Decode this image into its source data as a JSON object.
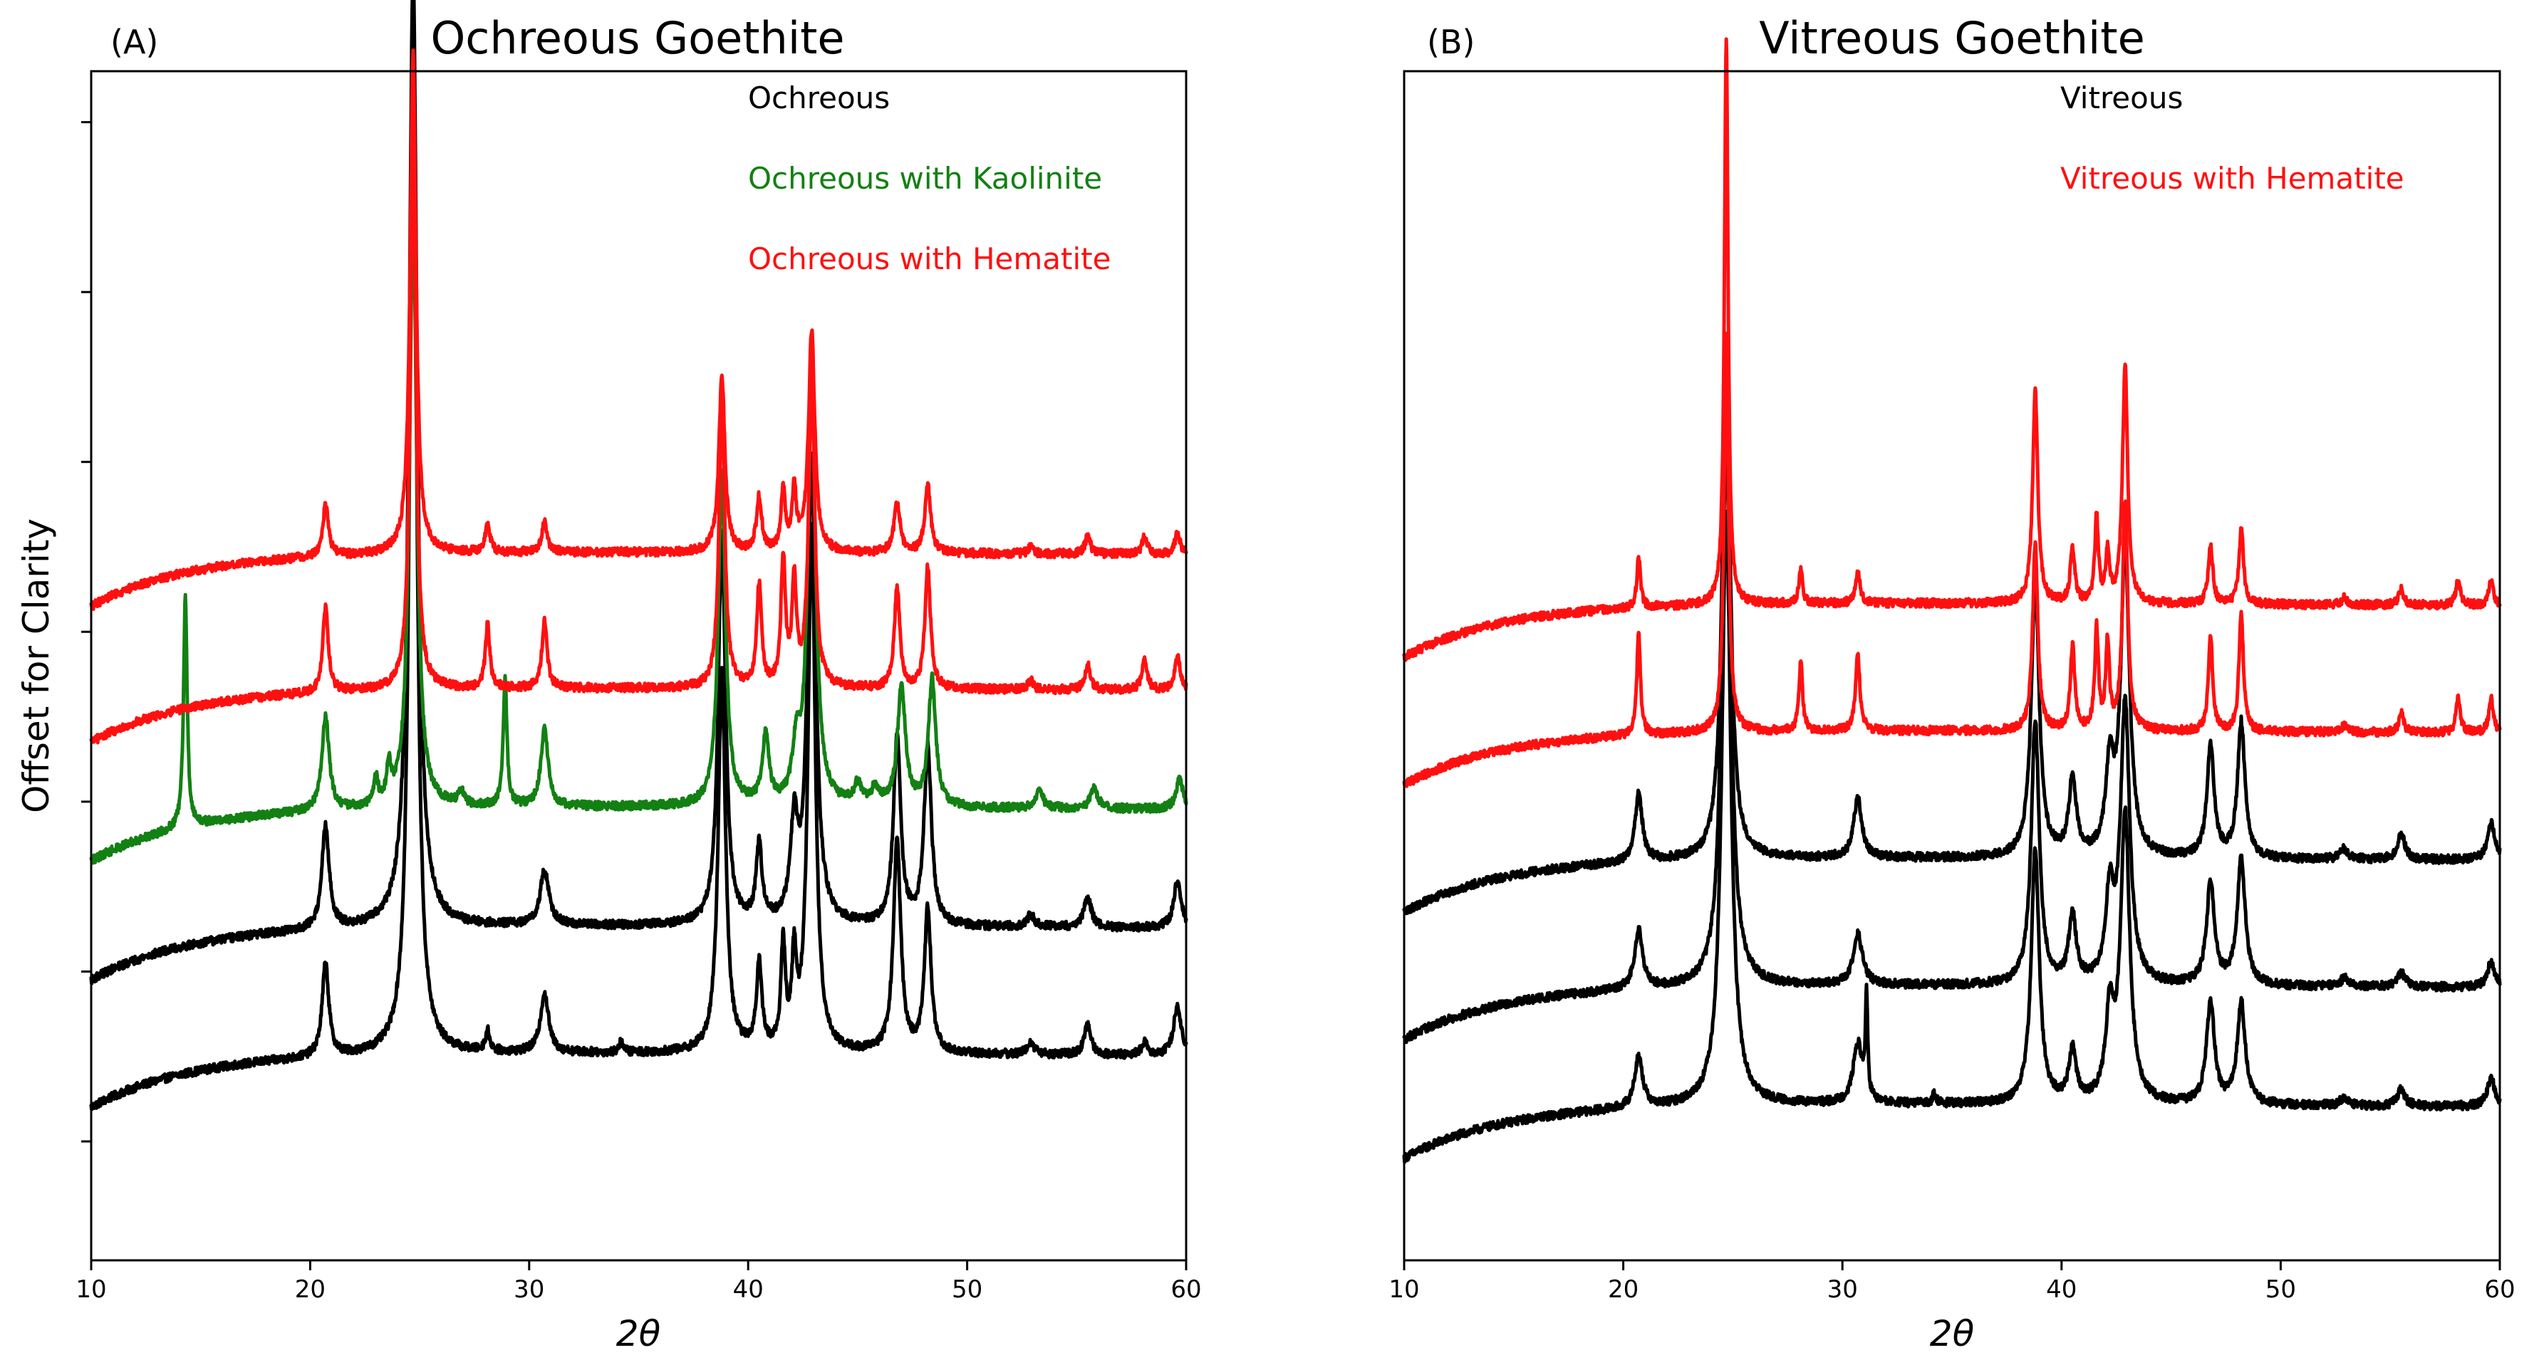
{
  "figure": {
    "ylabel": "Offset for Clarity"
  },
  "chart_data": [
    {
      "type": "line",
      "panel_label": "(A)",
      "title": "Ochreous Goethite",
      "xlabel": "2θ",
      "xlim": [
        10,
        60
      ],
      "xticks": [
        "10",
        "20",
        "30",
        "40",
        "50",
        "60"
      ],
      "ylabel": "Offset for Clarity",
      "ylim": [
        0,
        7
      ],
      "y_ticks_count": 7,
      "legend_placement": "top-right",
      "legend": [
        {
          "label": "Ochreous",
          "color": "#000000"
        },
        {
          "label": "Ochreous with Kaolinite",
          "color": "#138013"
        },
        {
          "label": "Ochreous with Hematite",
          "color": "#ff1010"
        }
      ],
      "series": [
        {
          "name": "Ochreous 1",
          "color": "#000000",
          "baseline": 0.9,
          "peaks": [
            [
              20.7,
              0.55,
              0.18
            ],
            [
              24.7,
              5.9,
              0.2
            ],
            [
              28.1,
              0.12,
              0.12
            ],
            [
              30.7,
              0.35,
              0.22
            ],
            [
              34.2,
              0.06,
              0.12
            ],
            [
              38.8,
              2.25,
              0.2
            ],
            [
              40.5,
              0.5,
              0.15
            ],
            [
              41.6,
              0.6,
              0.12
            ],
            [
              42.1,
              0.5,
              0.12
            ],
            [
              42.9,
              3.1,
              0.2
            ],
            [
              46.8,
              1.25,
              0.2
            ],
            [
              48.2,
              0.85,
              0.18
            ],
            [
              52.9,
              0.07,
              0.2
            ],
            [
              55.5,
              0.18,
              0.18
            ],
            [
              58.1,
              0.08,
              0.15
            ],
            [
              59.6,
              0.3,
              0.2
            ]
          ]
        },
        {
          "name": "Ochreous 2",
          "color": "#000000",
          "baseline": 1.65,
          "peaks": [
            [
              20.7,
              0.6,
              0.2
            ],
            [
              24.7,
              5.6,
              0.22
            ],
            [
              30.7,
              0.32,
              0.24
            ],
            [
              38.8,
              2.3,
              0.2
            ],
            [
              40.5,
              0.45,
              0.16
            ],
            [
              42.1,
              0.55,
              0.2
            ],
            [
              42.9,
              2.75,
              0.22
            ],
            [
              46.8,
              1.1,
              0.2
            ],
            [
              48.2,
              1.05,
              0.2
            ],
            [
              52.9,
              0.07,
              0.2
            ],
            [
              55.5,
              0.18,
              0.2
            ],
            [
              59.6,
              0.28,
              0.2
            ]
          ]
        },
        {
          "name": "Ochreous with Kaolinite",
          "color": "#138013",
          "baseline": 2.35,
          "peaks": [
            [
              14.3,
              1.35,
              0.1
            ],
            [
              20.7,
              0.55,
              0.2
            ],
            [
              23.0,
              0.15,
              0.12
            ],
            [
              23.6,
              0.2,
              0.12
            ],
            [
              24.7,
              3.5,
              0.2
            ],
            [
              26.9,
              0.08,
              0.15
            ],
            [
              28.9,
              0.75,
              0.1
            ],
            [
              30.7,
              0.45,
              0.2
            ],
            [
              38.8,
              1.95,
              0.2
            ],
            [
              40.8,
              0.4,
              0.18
            ],
            [
              42.2,
              0.3,
              0.2
            ],
            [
              42.9,
              2.45,
              0.22
            ],
            [
              45.0,
              0.12,
              0.2
            ],
            [
              45.8,
              0.1,
              0.2
            ],
            [
              47.0,
              0.7,
              0.22
            ],
            [
              48.4,
              0.75,
              0.2
            ],
            [
              53.3,
              0.1,
              0.2
            ],
            [
              55.8,
              0.12,
              0.2
            ],
            [
              59.7,
              0.17,
              0.2
            ]
          ]
        },
        {
          "name": "Ochreous with Hematite 1",
          "color": "#ff1010",
          "baseline": 3.05,
          "peaks": [
            [
              20.7,
              0.5,
              0.15
            ],
            [
              24.7,
              3.4,
              0.15
            ],
            [
              28.1,
              0.38,
              0.12
            ],
            [
              30.7,
              0.4,
              0.14
            ],
            [
              38.8,
              1.75,
              0.15
            ],
            [
              40.5,
              0.6,
              0.13
            ],
            [
              41.6,
              0.75,
              0.12
            ],
            [
              42.1,
              0.6,
              0.12
            ],
            [
              42.9,
              1.85,
              0.16
            ],
            [
              46.8,
              0.6,
              0.15
            ],
            [
              48.2,
              0.72,
              0.15
            ],
            [
              52.9,
              0.05,
              0.15
            ],
            [
              55.5,
              0.15,
              0.15
            ],
            [
              58.1,
              0.18,
              0.14
            ],
            [
              59.6,
              0.2,
              0.15
            ]
          ]
        },
        {
          "name": "Ochreous with Hematite 2",
          "color": "#ff1010",
          "baseline": 3.85,
          "peaks": [
            [
              20.7,
              0.3,
              0.16
            ],
            [
              24.7,
              2.95,
              0.16
            ],
            [
              28.1,
              0.18,
              0.12
            ],
            [
              30.7,
              0.18,
              0.15
            ],
            [
              38.8,
              1.05,
              0.16
            ],
            [
              40.5,
              0.32,
              0.14
            ],
            [
              41.6,
              0.35,
              0.12
            ],
            [
              42.1,
              0.35,
              0.12
            ],
            [
              42.9,
              1.3,
              0.17
            ],
            [
              46.8,
              0.3,
              0.16
            ],
            [
              48.2,
              0.4,
              0.16
            ],
            [
              52.9,
              0.04,
              0.15
            ],
            [
              55.5,
              0.1,
              0.15
            ],
            [
              58.1,
              0.1,
              0.14
            ],
            [
              59.6,
              0.12,
              0.15
            ]
          ]
        }
      ]
    },
    {
      "type": "line",
      "panel_label": "(B)",
      "title": "Vitreous Goethite",
      "xlabel": "2θ",
      "xlim": [
        10,
        60
      ],
      "xticks": [
        "10",
        "20",
        "30",
        "40",
        "50",
        "60"
      ],
      "ylim": [
        0,
        7
      ],
      "y_ticks_count": 0,
      "legend_placement": "top-right",
      "legend": [
        {
          "label": "Vitreous",
          "color": "#000000"
        },
        {
          "label": "Vitreous with Hematite",
          "color": "#ff1010"
        }
      ],
      "series": [
        {
          "name": "Vitreous 1",
          "color": "#000000",
          "baseline": 0.6,
          "peaks": [
            [
              20.7,
              0.3,
              0.22
            ],
            [
              24.7,
              3.5,
              0.25
            ],
            [
              30.7,
              0.35,
              0.25
            ],
            [
              31.1,
              0.6,
              0.06
            ],
            [
              34.2,
              0.06,
              0.1
            ],
            [
              38.8,
              1.5,
              0.22
            ],
            [
              40.5,
              0.3,
              0.2
            ],
            [
              42.2,
              0.5,
              0.22
            ],
            [
              42.9,
              1.7,
              0.25
            ],
            [
              46.8,
              0.6,
              0.22
            ],
            [
              48.2,
              0.6,
              0.22
            ],
            [
              52.9,
              0.05,
              0.2
            ],
            [
              55.5,
              0.1,
              0.2
            ],
            [
              59.6,
              0.17,
              0.2
            ]
          ]
        },
        {
          "name": "Vitreous 2",
          "color": "#000000",
          "baseline": 1.3,
          "peaks": [
            [
              20.7,
              0.35,
              0.22
            ],
            [
              24.7,
              3.2,
              0.25
            ],
            [
              30.7,
              0.3,
              0.25
            ],
            [
              38.8,
              1.55,
              0.22
            ],
            [
              40.5,
              0.4,
              0.2
            ],
            [
              42.2,
              0.5,
              0.22
            ],
            [
              42.9,
              1.65,
              0.25
            ],
            [
              46.8,
              0.6,
              0.22
            ],
            [
              48.2,
              0.75,
              0.22
            ],
            [
              52.9,
              0.05,
              0.2
            ],
            [
              55.5,
              0.08,
              0.25
            ],
            [
              59.6,
              0.15,
              0.2
            ]
          ]
        },
        {
          "name": "Vitreous 3",
          "color": "#000000",
          "baseline": 2.05,
          "peaks": [
            [
              20.7,
              0.4,
              0.2
            ],
            [
              24.7,
              3.0,
              0.22
            ],
            [
              30.7,
              0.35,
              0.22
            ],
            [
              38.8,
              1.6,
              0.22
            ],
            [
              40.5,
              0.45,
              0.2
            ],
            [
              42.2,
              0.5,
              0.22
            ],
            [
              42.9,
              1.8,
              0.24
            ],
            [
              46.8,
              0.65,
              0.2
            ],
            [
              48.2,
              0.8,
              0.2
            ],
            [
              52.9,
              0.06,
              0.2
            ],
            [
              55.5,
              0.15,
              0.2
            ],
            [
              59.6,
              0.22,
              0.2
            ]
          ]
        },
        {
          "name": "Vitreous with Hematite 1",
          "color": "#ff1010",
          "baseline": 2.8,
          "peaks": [
            [
              20.7,
              0.6,
              0.1
            ],
            [
              24.7,
              2.35,
              0.12
            ],
            [
              28.1,
              0.4,
              0.1
            ],
            [
              30.7,
              0.45,
              0.12
            ],
            [
              38.8,
              1.1,
              0.14
            ],
            [
              40.5,
              0.5,
              0.12
            ],
            [
              41.6,
              0.6,
              0.1
            ],
            [
              42.1,
              0.5,
              0.1
            ],
            [
              42.9,
              1.35,
              0.14
            ],
            [
              46.8,
              0.55,
              0.12
            ],
            [
              48.2,
              0.7,
              0.12
            ],
            [
              52.9,
              0.04,
              0.15
            ],
            [
              55.5,
              0.12,
              0.12
            ],
            [
              58.1,
              0.2,
              0.12
            ],
            [
              59.6,
              0.2,
              0.12
            ]
          ]
        },
        {
          "name": "Vitreous with Hematite 2",
          "color": "#ff1010",
          "baseline": 3.55,
          "peaks": [
            [
              20.7,
              0.3,
              0.1
            ],
            [
              24.7,
              3.35,
              0.1
            ],
            [
              28.1,
              0.2,
              0.1
            ],
            [
              30.7,
              0.2,
              0.12
            ],
            [
              38.8,
              1.25,
              0.14
            ],
            [
              40.5,
              0.32,
              0.12
            ],
            [
              41.6,
              0.5,
              0.1
            ],
            [
              42.1,
              0.3,
              0.1
            ],
            [
              42.9,
              1.4,
              0.14
            ],
            [
              46.8,
              0.35,
              0.12
            ],
            [
              48.2,
              0.45,
              0.12
            ],
            [
              52.9,
              0.04,
              0.15
            ],
            [
              55.5,
              0.1,
              0.12
            ],
            [
              58.1,
              0.15,
              0.12
            ],
            [
              59.6,
              0.15,
              0.12
            ]
          ]
        }
      ]
    }
  ]
}
